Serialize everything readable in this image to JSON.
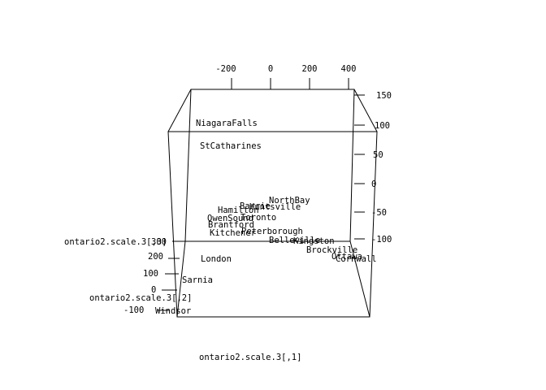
{
  "chart_data": {
    "type": "scatter",
    "title": "",
    "xlabel": "ontario2.scale.3[,1]",
    "ylabel": "ontario2.scale.3[,2]",
    "zlabel": "ontario2.scale.3[,3]",
    "x_ticks": [
      "-200",
      "0",
      "200",
      "400"
    ],
    "y_ticks": [
      "-100",
      "0",
      "100",
      "200",
      "300"
    ],
    "z_ticks": [
      "150",
      "100",
      "50",
      "0",
      "-50",
      "-100"
    ],
    "grid": false,
    "points": [
      {
        "label": "NiagaraFalls"
      },
      {
        "label": "StCatharines"
      },
      {
        "label": "NorthBay"
      },
      {
        "label": "Barrie"
      },
      {
        "label": "Huntsville"
      },
      {
        "label": "Hamilton"
      },
      {
        "label": "OwenSound"
      },
      {
        "label": "Toronto"
      },
      {
        "label": "Brantford"
      },
      {
        "label": "Kitchener"
      },
      {
        "label": "Peterborough"
      },
      {
        "label": "Belleville"
      },
      {
        "label": "Kingston"
      },
      {
        "label": "Brockville"
      },
      {
        "label": "Ottawa"
      },
      {
        "label": "Cornwall"
      },
      {
        "label": "London"
      },
      {
        "label": "Sarnia"
      },
      {
        "label": "Windsor"
      }
    ]
  }
}
